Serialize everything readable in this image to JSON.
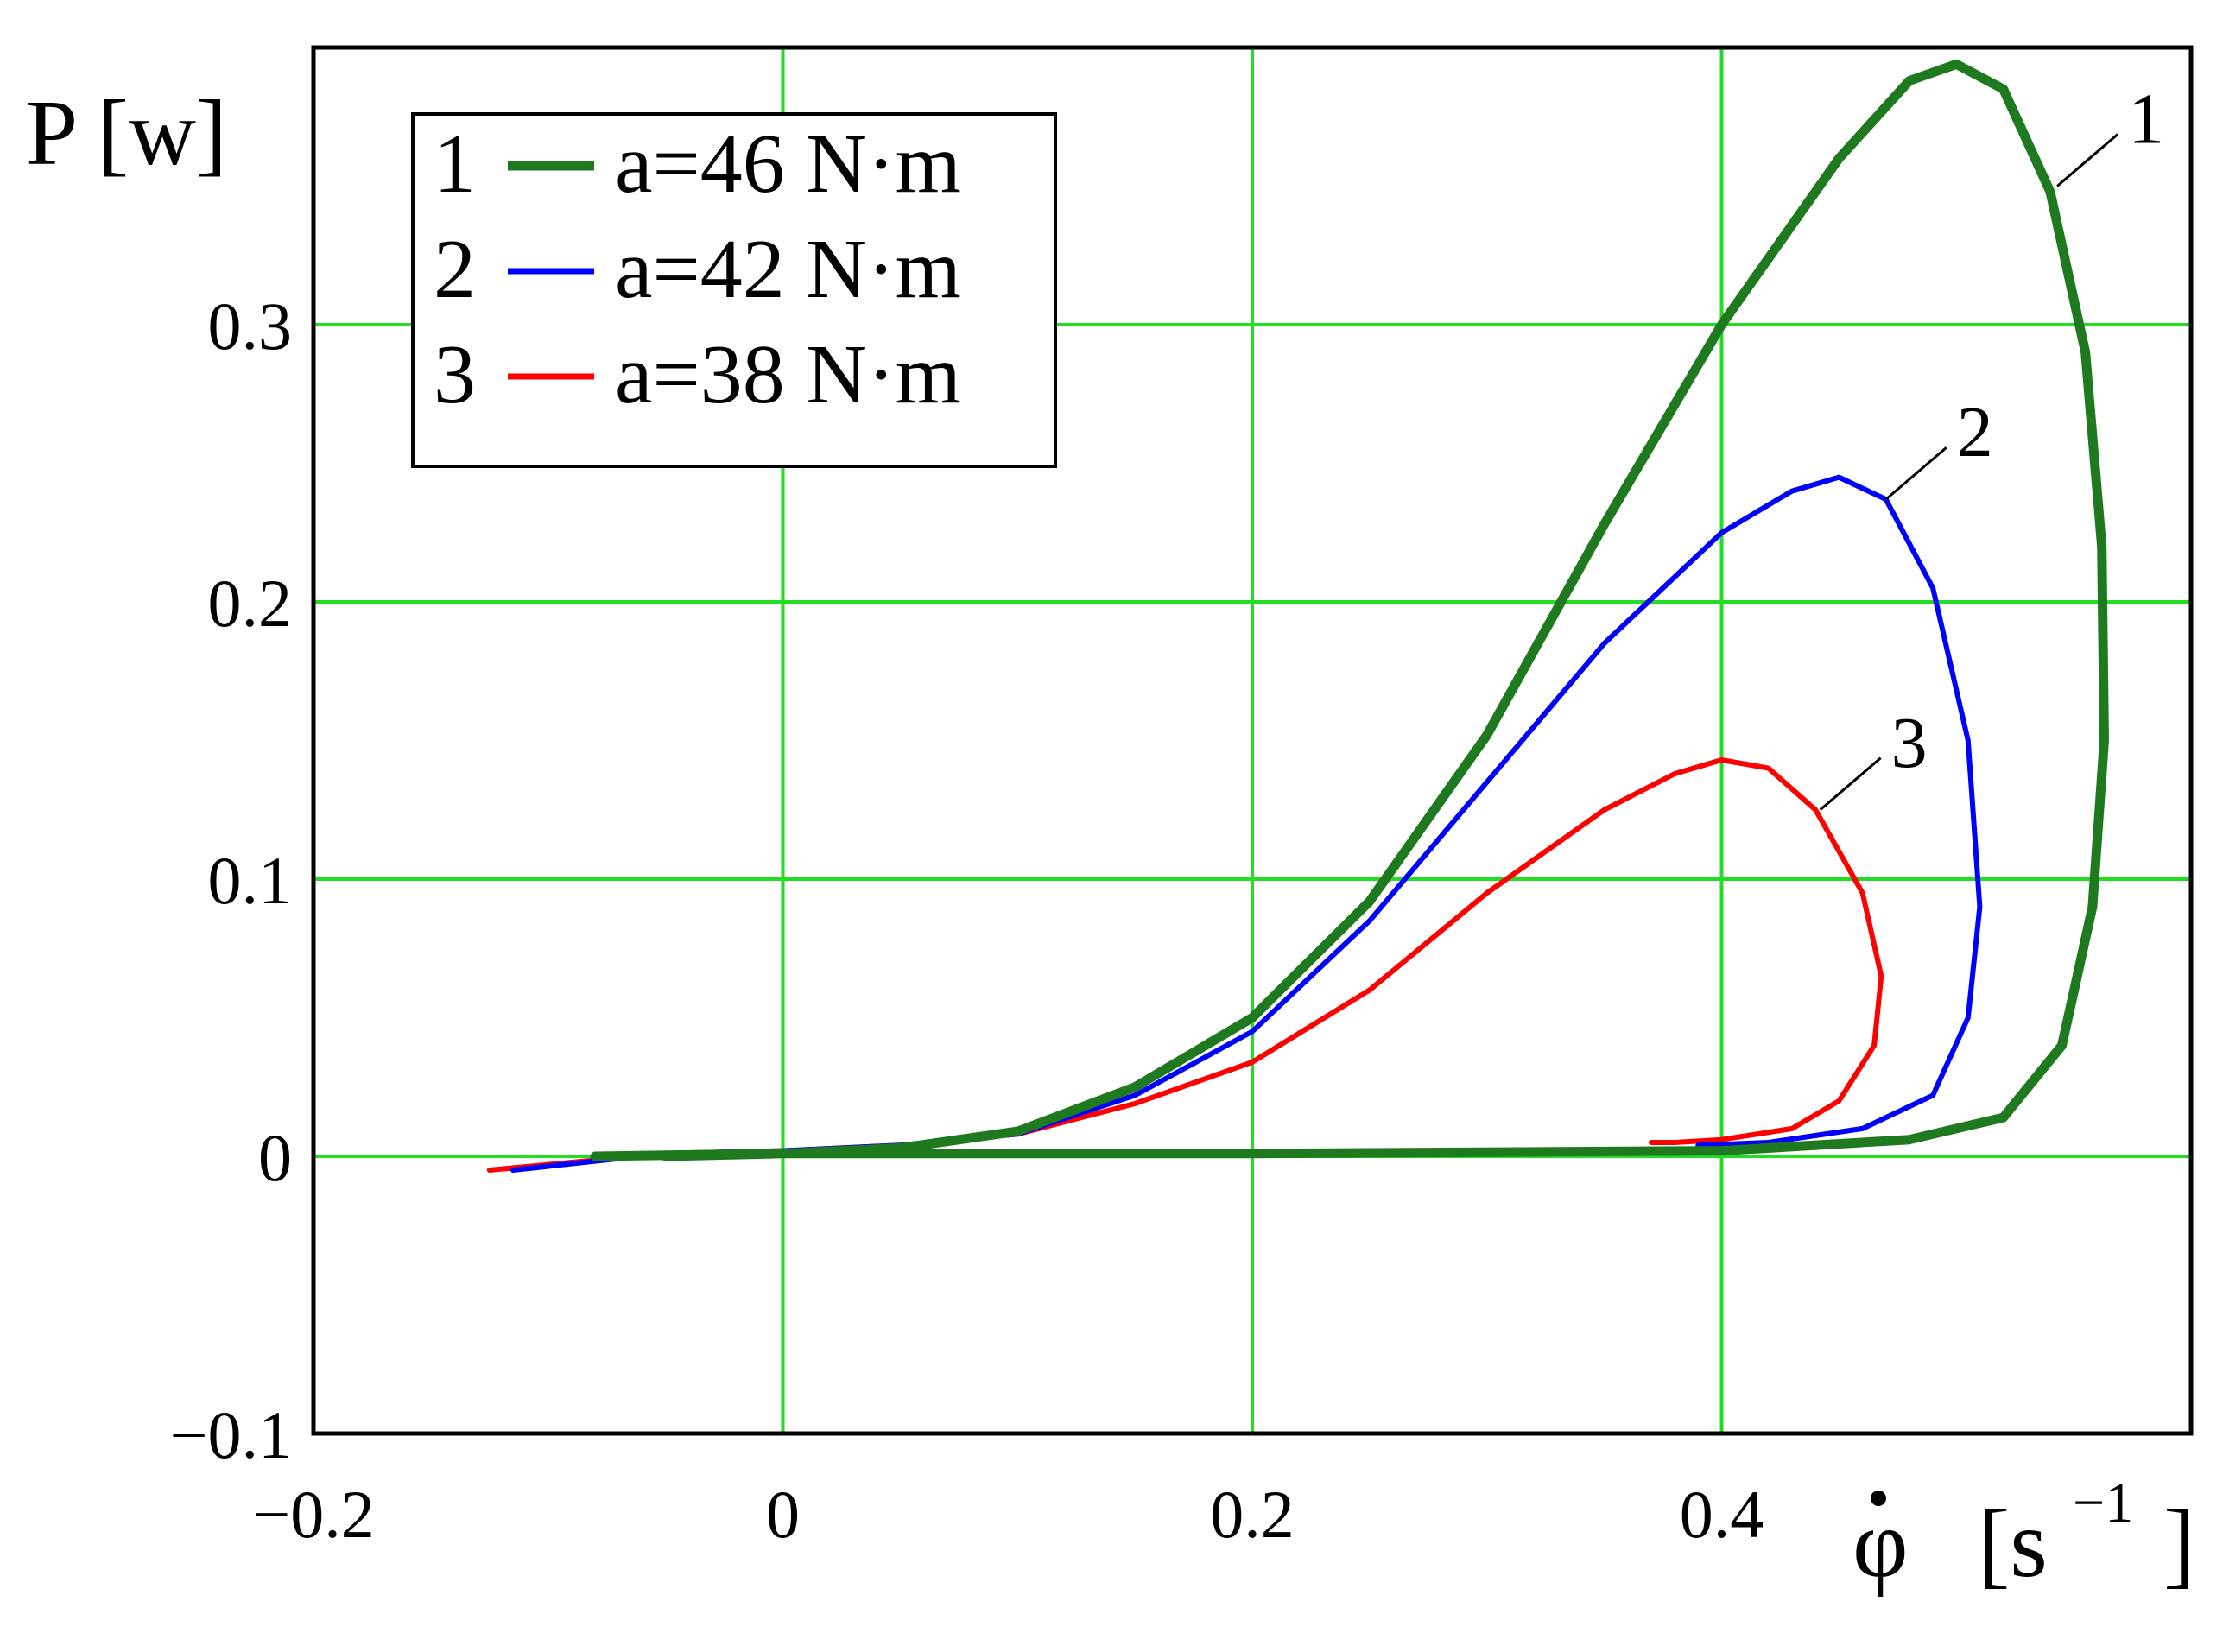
{
  "chart_data": {
    "type": "line",
    "title": "",
    "xlabel": "φ̇ [s⁻¹]",
    "xlabel_parts": {
      "symbol": "φ",
      "unit_open": "[s",
      "unit_exp": "−1",
      "unit_close": "]"
    },
    "ylabel": "P [w]",
    "xlim": [
      -0.2,
      0.6
    ],
    "ylim": [
      -0.1,
      0.4
    ],
    "x_ticks": [
      -0.2,
      0,
      0.2,
      0.4
    ],
    "x_tick_labels": [
      "−0.2",
      "0",
      "0.2",
      "0.4"
    ],
    "y_ticks": [
      -0.1,
      0,
      0.1,
      0.2,
      0.3
    ],
    "y_tick_labels": [
      "−0.1",
      "0",
      "0.1",
      "0.2",
      "0.3"
    ],
    "grid": true,
    "grid_color": "#22dd22",
    "legend_position": "top-left",
    "legend_numbers": [
      "1",
      "2",
      "3"
    ],
    "series": [
      {
        "name": "a=46 N·m",
        "label": "1",
        "color": "#1f7a1f",
        "points": [
          [
            -0.08,
            0.0
          ],
          [
            0.0,
            0.001
          ],
          [
            0.05,
            0.003
          ],
          [
            0.1,
            0.009
          ],
          [
            0.15,
            0.025
          ],
          [
            0.2,
            0.05
          ],
          [
            0.25,
            0.092
          ],
          [
            0.3,
            0.152
          ],
          [
            0.35,
            0.228
          ],
          [
            0.4,
            0.3
          ],
          [
            0.45,
            0.36
          ],
          [
            0.48,
            0.388
          ],
          [
            0.5,
            0.394
          ],
          [
            0.52,
            0.385
          ],
          [
            0.54,
            0.348
          ],
          [
            0.555,
            0.29
          ],
          [
            0.562,
            0.22
          ],
          [
            0.563,
            0.15
          ],
          [
            0.558,
            0.09
          ],
          [
            0.545,
            0.04
          ],
          [
            0.52,
            0.014
          ],
          [
            0.48,
            0.006
          ],
          [
            0.4,
            0.002
          ],
          [
            0.2,
            0.001
          ],
          [
            0.0,
            0.001
          ],
          [
            -0.05,
            0.0
          ]
        ]
      },
      {
        "name": "a=42 N·m",
        "label": "2",
        "color": "#0000ff",
        "points": [
          [
            -0.115,
            -0.005
          ],
          [
            -0.05,
            0.001
          ],
          [
            0.0,
            0.002
          ],
          [
            0.05,
            0.004
          ],
          [
            0.1,
            0.008
          ],
          [
            0.15,
            0.022
          ],
          [
            0.2,
            0.045
          ],
          [
            0.25,
            0.085
          ],
          [
            0.3,
            0.135
          ],
          [
            0.35,
            0.185
          ],
          [
            0.4,
            0.225
          ],
          [
            0.43,
            0.24
          ],
          [
            0.45,
            0.245
          ],
          [
            0.47,
            0.237
          ],
          [
            0.49,
            0.205
          ],
          [
            0.505,
            0.15
          ],
          [
            0.51,
            0.09
          ],
          [
            0.505,
            0.05
          ],
          [
            0.49,
            0.022
          ],
          [
            0.46,
            0.01
          ],
          [
            0.42,
            0.005
          ],
          [
            0.39,
            0.004
          ]
        ]
      },
      {
        "name": "a=38 N·m",
        "label": "3",
        "color": "#ff0000",
        "points": [
          [
            -0.125,
            -0.005
          ],
          [
            -0.05,
            0.001
          ],
          [
            0.0,
            0.002
          ],
          [
            0.05,
            0.004
          ],
          [
            0.1,
            0.008
          ],
          [
            0.15,
            0.019
          ],
          [
            0.2,
            0.034
          ],
          [
            0.25,
            0.06
          ],
          [
            0.3,
            0.095
          ],
          [
            0.35,
            0.125
          ],
          [
            0.38,
            0.138
          ],
          [
            0.4,
            0.143
          ],
          [
            0.42,
            0.14
          ],
          [
            0.44,
            0.125
          ],
          [
            0.46,
            0.095
          ],
          [
            0.468,
            0.065
          ],
          [
            0.465,
            0.04
          ],
          [
            0.45,
            0.02
          ],
          [
            0.43,
            0.01
          ],
          [
            0.4,
            0.006
          ],
          [
            0.38,
            0.005
          ],
          [
            0.37,
            0.005
          ]
        ]
      }
    ]
  }
}
